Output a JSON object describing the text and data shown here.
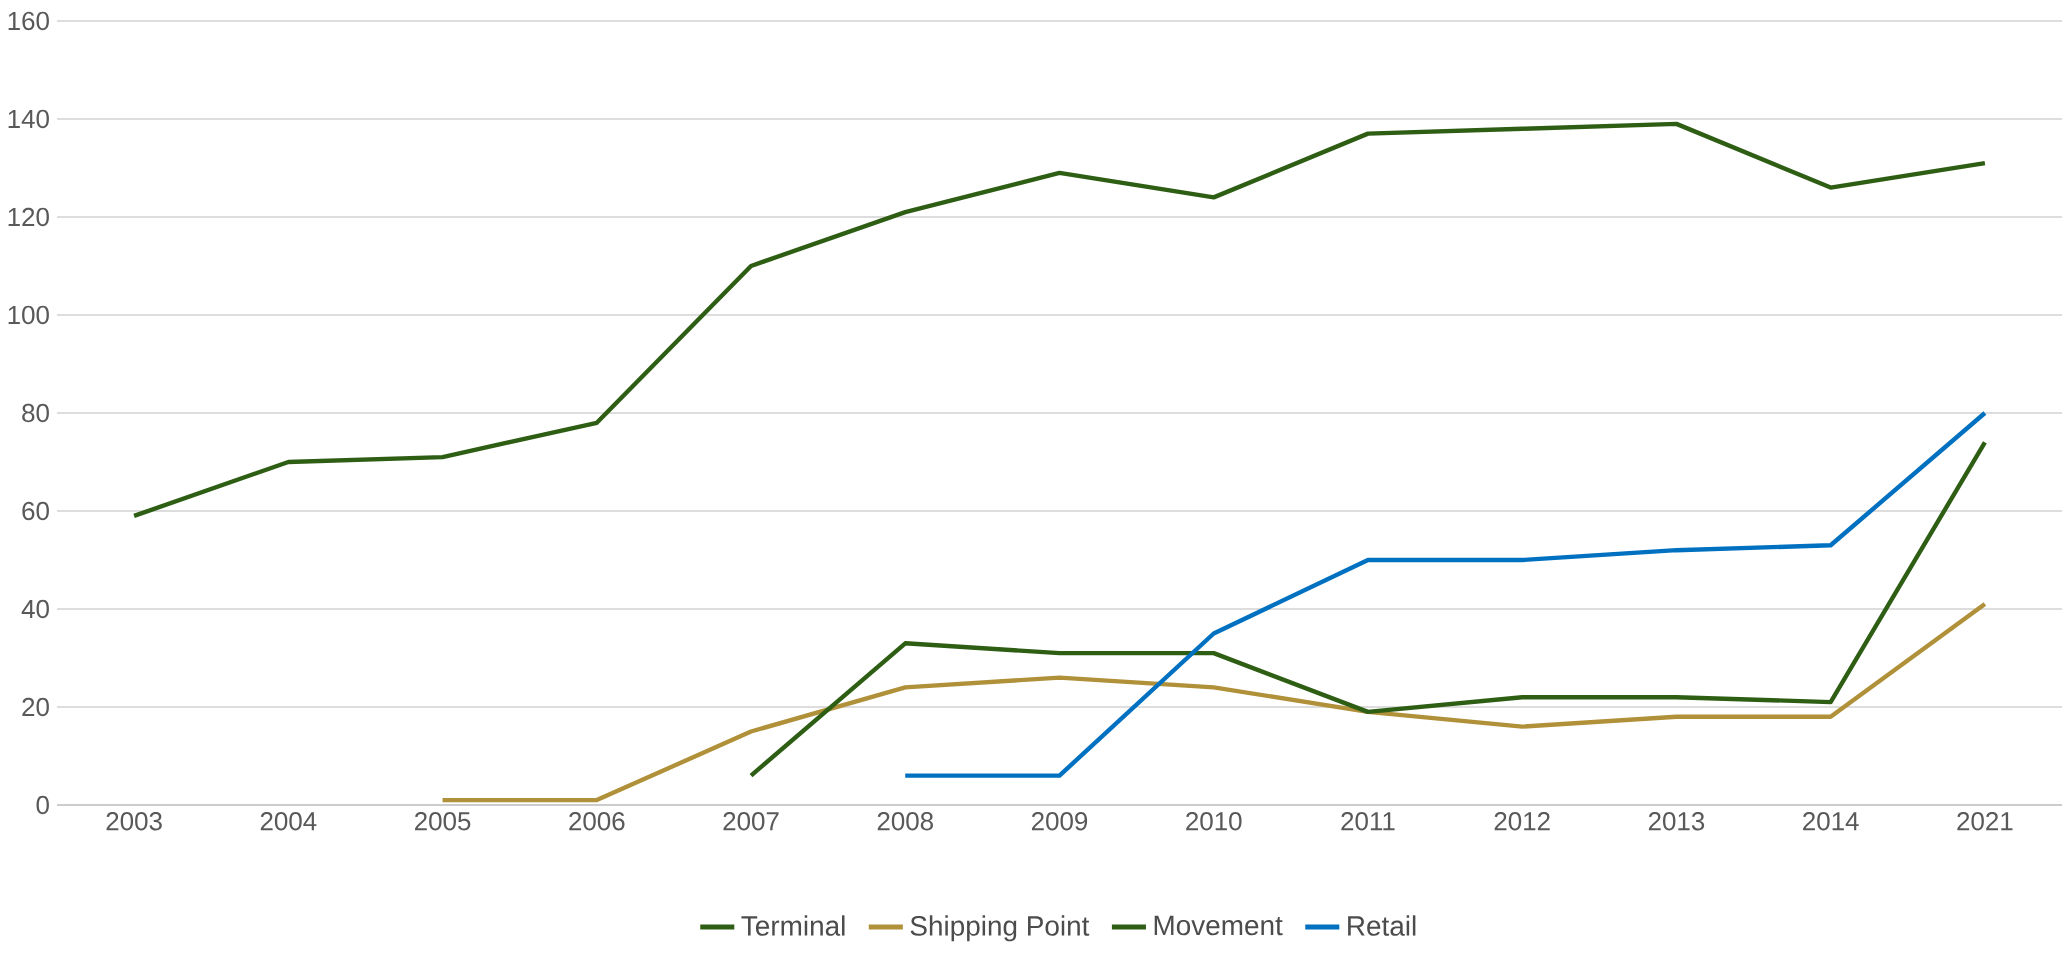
{
  "chart_data": {
    "type": "line",
    "categories": [
      "2003",
      "2004",
      "2005",
      "2006",
      "2007",
      "2008",
      "2009",
      "2010",
      "2011",
      "2012",
      "2013",
      "2014",
      "2021"
    ],
    "series": [
      {
        "name": "Terminal",
        "color": "#2e5e14",
        "values": [
          59,
          70,
          71,
          78,
          110,
          121,
          129,
          124,
          137,
          138,
          139,
          126,
          131
        ]
      },
      {
        "name": "Shipping Point",
        "color": "#b0913a",
        "values": [
          null,
          null,
          1,
          1,
          15,
          24,
          26,
          24,
          19,
          16,
          18,
          18,
          41
        ]
      },
      {
        "name": "Movement",
        "color": "#2e5e14",
        "values": [
          null,
          null,
          null,
          null,
          6,
          33,
          31,
          31,
          19,
          22,
          22,
          21,
          74
        ]
      },
      {
        "name": "Retail",
        "color": "#0070c0",
        "values": [
          null,
          null,
          null,
          null,
          null,
          6,
          6,
          35,
          50,
          50,
          52,
          53,
          80
        ]
      }
    ],
    "ylim": [
      0,
      160
    ],
    "yticks": [
      0,
      20,
      40,
      60,
      80,
      100,
      120,
      140,
      160
    ],
    "grid": "y",
    "legend": "bottom",
    "marker": "none",
    "line_style": "solid"
  }
}
